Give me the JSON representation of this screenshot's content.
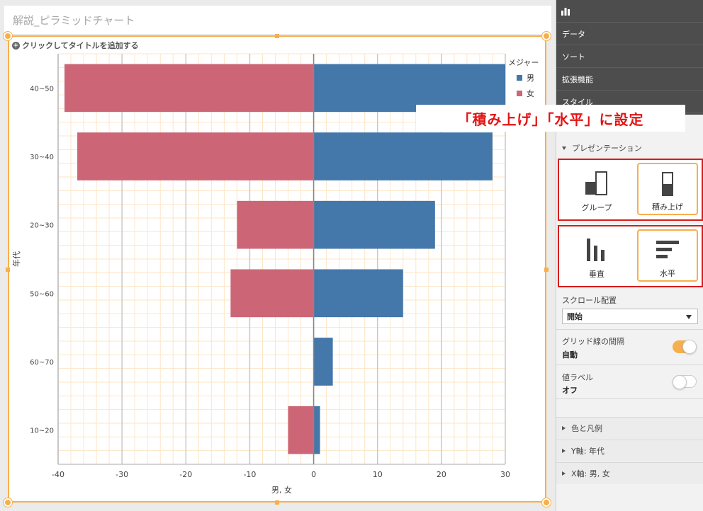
{
  "sheet": {
    "title": "解説_ピラミッドチャート"
  },
  "chart": {
    "add_title": "クリックしてタイトルを追加する",
    "legend": {
      "title": "メジャー",
      "items": [
        {
          "label": "男",
          "color": "#4477aa"
        },
        {
          "label": "女",
          "color": "#cc6677"
        }
      ]
    }
  },
  "chart_data": {
    "type": "bar",
    "orientation": "horizontal",
    "stacked": true,
    "categories": [
      "40~50",
      "30~40",
      "20~30",
      "50~60",
      "60~70",
      "10~20"
    ],
    "series": [
      {
        "name": "男",
        "color": "#4477aa",
        "values": [
          30,
          28,
          19,
          14,
          3,
          1
        ]
      },
      {
        "name": "女",
        "color": "#cc6677",
        "values": [
          -39,
          -37,
          -12,
          -13,
          0,
          -4
        ]
      }
    ],
    "xlabel": "男, 女",
    "ylabel": "年代",
    "xlim": [
      -40,
      30
    ],
    "xticks": [
      -40,
      -30,
      -20,
      -10,
      0,
      10,
      20,
      30
    ],
    "grid": true,
    "legend_position": "top-right"
  },
  "panel": {
    "tabs": [
      "データ",
      "ソート",
      "拡張機能",
      "スタイル"
    ],
    "callout": "「積み上げ」「水平」に設定",
    "presentation": "プレゼンテーション",
    "grouping": {
      "grouped": "グループ",
      "stacked": "積み上げ"
    },
    "orientation": {
      "vertical": "垂直",
      "horizontal": "水平"
    },
    "scroll_label": "スクロール配置",
    "scroll_value": "開始",
    "gridline_label": "グリッド線の間隔",
    "gridline_value": "自動",
    "value_label_label": "値ラベル",
    "value_label_value": "オフ",
    "sections": [
      "色と凡例",
      "Y軸: 年代",
      "X軸: 男, 女"
    ]
  }
}
